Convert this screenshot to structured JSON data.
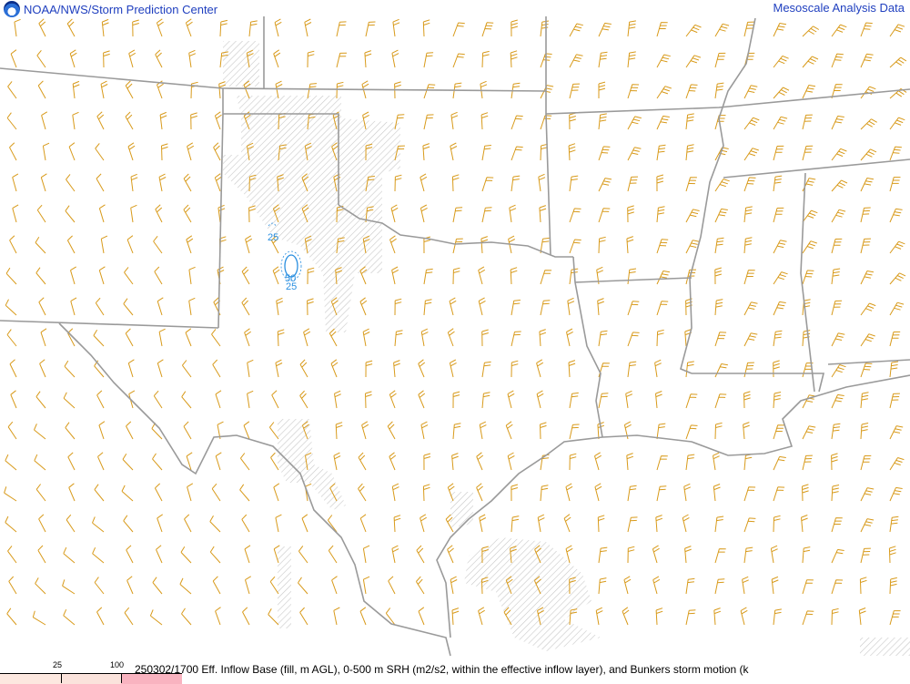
{
  "header": {
    "left_title": "NOAA/NWS/Storm Prediction Center",
    "right_title": "Mesoscale Analysis Data",
    "logo_icon": "noaa-logo-icon"
  },
  "footer": {
    "caption": "250302/1700 Eff. Inflow Base (fill, m AGL), 0-500 m SRH (m2/s2, within the effective inflow layer), and Bunkers storm motion (k",
    "legend": {
      "ticks": [
        "25",
        "100"
      ],
      "colors": [
        "#fde8e0",
        "#fbe3dc",
        "#f9b3c0"
      ]
    }
  },
  "map": {
    "border_color": "#9a9a9a",
    "barb_color": "#d89a1a",
    "contour_color": "#2a8fe0",
    "hatch_color": "#c8c8c8",
    "contour_labels": [
      "25",
      "50",
      "25"
    ]
  }
}
